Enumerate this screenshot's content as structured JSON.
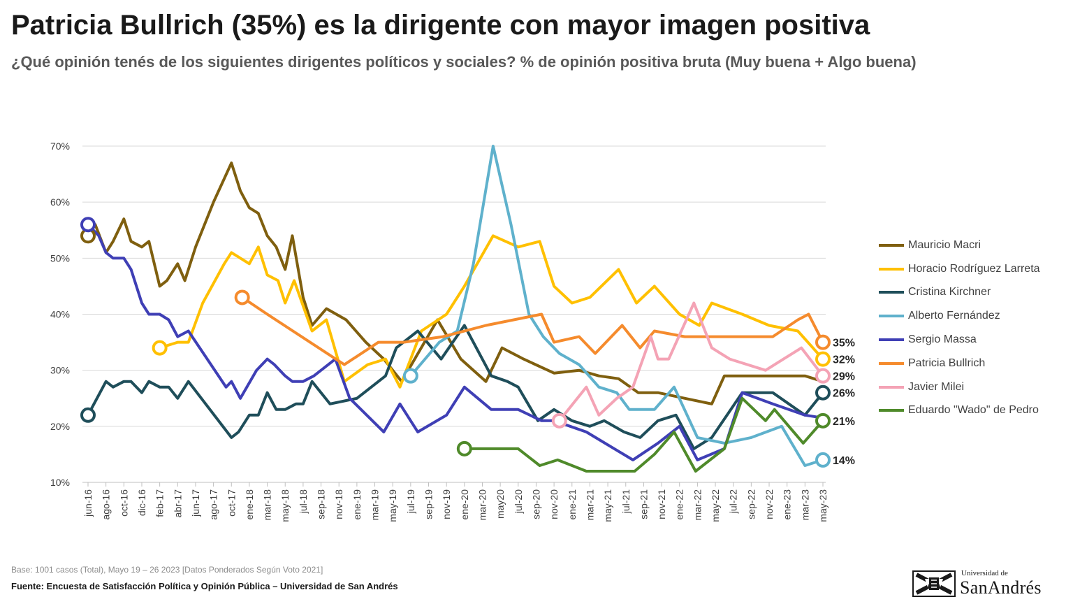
{
  "header": {
    "title": "Patricia Bullrich (35%) es la dirigente con mayor imagen positiva",
    "subtitle": "¿Qué opinión tenés de los siguientes dirigentes políticos y sociales? % de opinión positiva bruta (Muy buena + Algo buena)"
  },
  "footer": {
    "base": "Base: 1001 casos (Total), Mayo 19 – 26 2023 [Datos Ponderados Según Voto 2021]",
    "source": "Fuente: Encuesta de Satisfacción Política y Opinión Pública – Universidad de San Andrés"
  },
  "logo": {
    "small": "Universidad de",
    "big": "SanAndrés"
  },
  "chart_data": {
    "type": "line",
    "y_ticks": [
      "10%",
      "20%",
      "30%",
      "40%",
      "50%",
      "60%",
      "70%"
    ],
    "ylim": [
      10,
      70
    ],
    "grid": true,
    "legend_position": "right",
    "x_labels": [
      "jun-16",
      "ago-16",
      "oct-16",
      "dic-16",
      "feb-17",
      "abr-17",
      "jun-17",
      "ago-17",
      "oct-17",
      "ene-18",
      "mar-18",
      "may-18",
      "jul-18",
      "sep-18",
      "nov-18",
      "ene-19",
      "mar-19",
      "may-19",
      "jul-19",
      "sep-19",
      "nov-19",
      "ene-20",
      "mar-20",
      "may20",
      "jul-20",
      "sep-20",
      "nov-20",
      "ene-21",
      "mar-21",
      "may-21",
      "jul-21",
      "sep-21",
      "nov-21",
      "ene-22",
      "mar-22",
      "may-22",
      "jul-22",
      "sep-22",
      "nov-22",
      "ene-23",
      "mar-23",
      "may-23"
    ],
    "series": [
      {
        "name": "Mauricio Macri",
        "color": "#7f5f0f",
        "points": [
          [
            0,
            54
          ],
          [
            0.4,
            56
          ],
          [
            1,
            51
          ],
          [
            1.4,
            53
          ],
          [
            2,
            57
          ],
          [
            2.4,
            53
          ],
          [
            3,
            52
          ],
          [
            3.4,
            53
          ],
          [
            4,
            45
          ],
          [
            4.4,
            46
          ],
          [
            5,
            49
          ],
          [
            5.4,
            46
          ],
          [
            6,
            52
          ],
          [
            7,
            60
          ],
          [
            8,
            67
          ],
          [
            8.5,
            62
          ],
          [
            9,
            59
          ],
          [
            9.5,
            58
          ],
          [
            10,
            54
          ],
          [
            10.5,
            52
          ],
          [
            11,
            48
          ],
          [
            11.4,
            54
          ],
          [
            12,
            43
          ],
          [
            12.5,
            38
          ],
          [
            13.3,
            41
          ],
          [
            14.4,
            39
          ],
          [
            15.5,
            35
          ],
          [
            16.5,
            32
          ],
          [
            17.5,
            28
          ],
          [
            19.5,
            39
          ],
          [
            20.8,
            32
          ],
          [
            22.2,
            28
          ],
          [
            23.1,
            34
          ],
          [
            24.3,
            32
          ],
          [
            26,
            29.5
          ],
          [
            27.4,
            30
          ],
          [
            28.5,
            29
          ],
          [
            29.6,
            28.5
          ],
          [
            30.7,
            26
          ],
          [
            31.8,
            26
          ],
          [
            33.3,
            25
          ],
          [
            34.8,
            24
          ],
          [
            35.5,
            29
          ],
          [
            38,
            29
          ],
          [
            40,
            29
          ],
          [
            41,
            28
          ]
        ],
        "label": "",
        "end_marker": false
      },
      {
        "name": "Horacio Rodríguez Larreta",
        "color": "#ffc000",
        "points": [
          [
            4,
            34
          ],
          [
            5,
            35
          ],
          [
            5.6,
            35
          ],
          [
            6.4,
            42
          ],
          [
            7.6,
            49
          ],
          [
            8,
            51
          ],
          [
            9,
            49
          ],
          [
            9.5,
            52
          ],
          [
            10,
            47
          ],
          [
            10.6,
            46
          ],
          [
            11,
            42
          ],
          [
            11.5,
            46
          ],
          [
            12.5,
            37
          ],
          [
            13.3,
            39
          ],
          [
            14.3,
            28
          ],
          [
            15.6,
            31
          ],
          [
            16.6,
            32
          ],
          [
            17.4,
            27
          ],
          [
            18.6,
            37
          ],
          [
            20,
            40
          ],
          [
            21,
            45
          ],
          [
            22.6,
            54
          ],
          [
            24,
            52
          ],
          [
            25.2,
            53
          ],
          [
            26,
            45
          ],
          [
            27,
            42
          ],
          [
            28,
            43
          ],
          [
            29.6,
            48
          ],
          [
            30.6,
            42
          ],
          [
            31.6,
            45
          ],
          [
            33,
            40
          ],
          [
            34.1,
            38
          ],
          [
            34.8,
            42
          ],
          [
            36.5,
            40
          ],
          [
            38,
            38
          ],
          [
            39.6,
            37
          ],
          [
            41,
            32
          ]
        ],
        "label": "32%",
        "end_marker": true
      },
      {
        "name": "Cristina Kirchner",
        "color": "#1f4e5a",
        "points": [
          [
            0,
            22
          ],
          [
            1,
            28
          ],
          [
            1.4,
            27
          ],
          [
            2,
            28
          ],
          [
            2.4,
            28
          ],
          [
            3,
            26
          ],
          [
            3.4,
            28
          ],
          [
            4,
            27
          ],
          [
            4.5,
            27
          ],
          [
            5,
            25
          ],
          [
            5.6,
            28
          ],
          [
            8,
            18
          ],
          [
            8.4,
            19
          ],
          [
            9,
            22
          ],
          [
            9.5,
            22
          ],
          [
            10,
            26
          ],
          [
            10.5,
            23
          ],
          [
            11,
            23
          ],
          [
            11.6,
            24
          ],
          [
            12,
            24
          ],
          [
            12.5,
            28
          ],
          [
            13.5,
            24
          ],
          [
            15,
            25
          ],
          [
            16.6,
            29
          ],
          [
            17.2,
            34
          ],
          [
            18.4,
            37
          ],
          [
            19.7,
            32
          ],
          [
            21,
            38
          ],
          [
            22.5,
            29
          ],
          [
            23.4,
            28
          ],
          [
            24,
            27
          ],
          [
            25.1,
            21
          ],
          [
            26,
            23
          ],
          [
            27,
            21
          ],
          [
            28,
            20
          ],
          [
            28.8,
            21
          ],
          [
            29.9,
            19
          ],
          [
            30.8,
            18
          ],
          [
            31.8,
            21
          ],
          [
            32.8,
            22
          ],
          [
            33.8,
            16
          ],
          [
            34.8,
            18
          ],
          [
            36.5,
            26
          ],
          [
            38.2,
            26
          ],
          [
            40,
            22
          ],
          [
            41,
            26
          ]
        ],
        "label": "26%",
        "end_marker": true
      },
      {
        "name": "Alberto Fernández",
        "color": "#5fb1cc",
        "points": [
          [
            18,
            29
          ],
          [
            19.6,
            35
          ],
          [
            20.6,
            37
          ],
          [
            21.5,
            49
          ],
          [
            22.6,
            70
          ],
          [
            23.6,
            56
          ],
          [
            24.6,
            40
          ],
          [
            25.4,
            36
          ],
          [
            26.3,
            33
          ],
          [
            27.4,
            31
          ],
          [
            28.5,
            27
          ],
          [
            29.5,
            26
          ],
          [
            30.2,
            23
          ],
          [
            31.6,
            23
          ],
          [
            32.7,
            27
          ],
          [
            34,
            18
          ],
          [
            35.5,
            17
          ],
          [
            37,
            18
          ],
          [
            38.7,
            20
          ],
          [
            40,
            13
          ],
          [
            41,
            14
          ]
        ],
        "label": "14%",
        "end_marker": true
      },
      {
        "name": "Sergio Massa",
        "color": "#3f3fb5",
        "points": [
          [
            0,
            56
          ],
          [
            0.6,
            54
          ],
          [
            1,
            51
          ],
          [
            1.4,
            50
          ],
          [
            2,
            50
          ],
          [
            2.4,
            48
          ],
          [
            3,
            42
          ],
          [
            3.4,
            40
          ],
          [
            4,
            40
          ],
          [
            4.5,
            39
          ],
          [
            5,
            36
          ],
          [
            5.6,
            37
          ],
          [
            7.7,
            27
          ],
          [
            8,
            28
          ],
          [
            8.5,
            25
          ],
          [
            9.4,
            30
          ],
          [
            10,
            32
          ],
          [
            10.4,
            31
          ],
          [
            11,
            29
          ],
          [
            11.4,
            28
          ],
          [
            12,
            28
          ],
          [
            12.6,
            29
          ],
          [
            13.8,
            32
          ],
          [
            14.6,
            25
          ],
          [
            16.5,
            19
          ],
          [
            17.4,
            24
          ],
          [
            18.4,
            19
          ],
          [
            20,
            22
          ],
          [
            21,
            27
          ],
          [
            22.5,
            23
          ],
          [
            24,
            23
          ],
          [
            25.3,
            21
          ],
          [
            26,
            21
          ],
          [
            27.8,
            19
          ],
          [
            30.4,
            14
          ],
          [
            31.8,
            17
          ],
          [
            33,
            20
          ],
          [
            34,
            14
          ],
          [
            35.5,
            16
          ],
          [
            36.5,
            26
          ],
          [
            38.2,
            24
          ],
          [
            40,
            22
          ],
          [
            41,
            21.5
          ]
        ],
        "label": "",
        "end_marker": false
      },
      {
        "name": "Patricia Bullrich",
        "color": "#f58b2d",
        "points": [
          [
            8.6,
            43
          ],
          [
            10,
            40
          ],
          [
            14.3,
            31
          ],
          [
            16.2,
            35
          ],
          [
            17.6,
            35
          ],
          [
            19.8,
            36
          ],
          [
            22.2,
            38
          ],
          [
            25.3,
            40
          ],
          [
            26,
            35
          ],
          [
            27.4,
            36
          ],
          [
            28.3,
            33
          ],
          [
            29.8,
            38
          ],
          [
            30.8,
            34
          ],
          [
            31.6,
            37
          ],
          [
            33.3,
            36
          ],
          [
            34.6,
            36
          ],
          [
            36.6,
            36
          ],
          [
            38.2,
            36
          ],
          [
            39.6,
            39
          ],
          [
            40.2,
            40
          ],
          [
            41,
            35
          ]
        ],
        "label": "35%",
        "end_marker": true
      },
      {
        "name": "Javier Milei",
        "color": "#f4a3b5",
        "points": [
          [
            26.3,
            21
          ],
          [
            27.8,
            27
          ],
          [
            28.5,
            22
          ],
          [
            29.5,
            25
          ],
          [
            30.4,
            27
          ],
          [
            31.4,
            36
          ],
          [
            31.8,
            32
          ],
          [
            32.4,
            32
          ],
          [
            33.8,
            42
          ],
          [
            34.8,
            34
          ],
          [
            35.8,
            32
          ],
          [
            37.8,
            30
          ],
          [
            38.8,
            32
          ],
          [
            39.8,
            34
          ],
          [
            41,
            29
          ]
        ],
        "label": "29%",
        "end_marker": true
      },
      {
        "name": "Eduardo \"Wado\" de Pedro",
        "color": "#4f8a2a",
        "points": [
          [
            21,
            16
          ],
          [
            24,
            16
          ],
          [
            25.2,
            13
          ],
          [
            26.2,
            14
          ],
          [
            27.8,
            12
          ],
          [
            29.5,
            12
          ],
          [
            30.5,
            12
          ],
          [
            31.6,
            15
          ],
          [
            32.7,
            19
          ],
          [
            33.9,
            12
          ],
          [
            35.5,
            16
          ],
          [
            36.5,
            25
          ],
          [
            37.8,
            21
          ],
          [
            38.3,
            23
          ],
          [
            39.9,
            17
          ],
          [
            41,
            21
          ]
        ],
        "label": "21%",
        "end_marker": true
      }
    ],
    "start_markers": [
      {
        "series": "Mauricio Macri",
        "x": 0,
        "y": 54
      },
      {
        "series": "Sergio Massa",
        "x": 0,
        "y": 56
      },
      {
        "series": "Cristina Kirchner",
        "x": 0,
        "y": 22
      },
      {
        "series": "Horacio Rodríguez Larreta",
        "x": 4,
        "y": 34
      },
      {
        "series": "Patricia Bullrich",
        "x": 8.6,
        "y": 43
      },
      {
        "series": "Alberto Fernández",
        "x": 18,
        "y": 29
      },
      {
        "series": "Eduardo \"Wado\" de Pedro",
        "x": 21,
        "y": 16
      },
      {
        "series": "Javier Milei",
        "x": 26.3,
        "y": 21
      }
    ]
  }
}
